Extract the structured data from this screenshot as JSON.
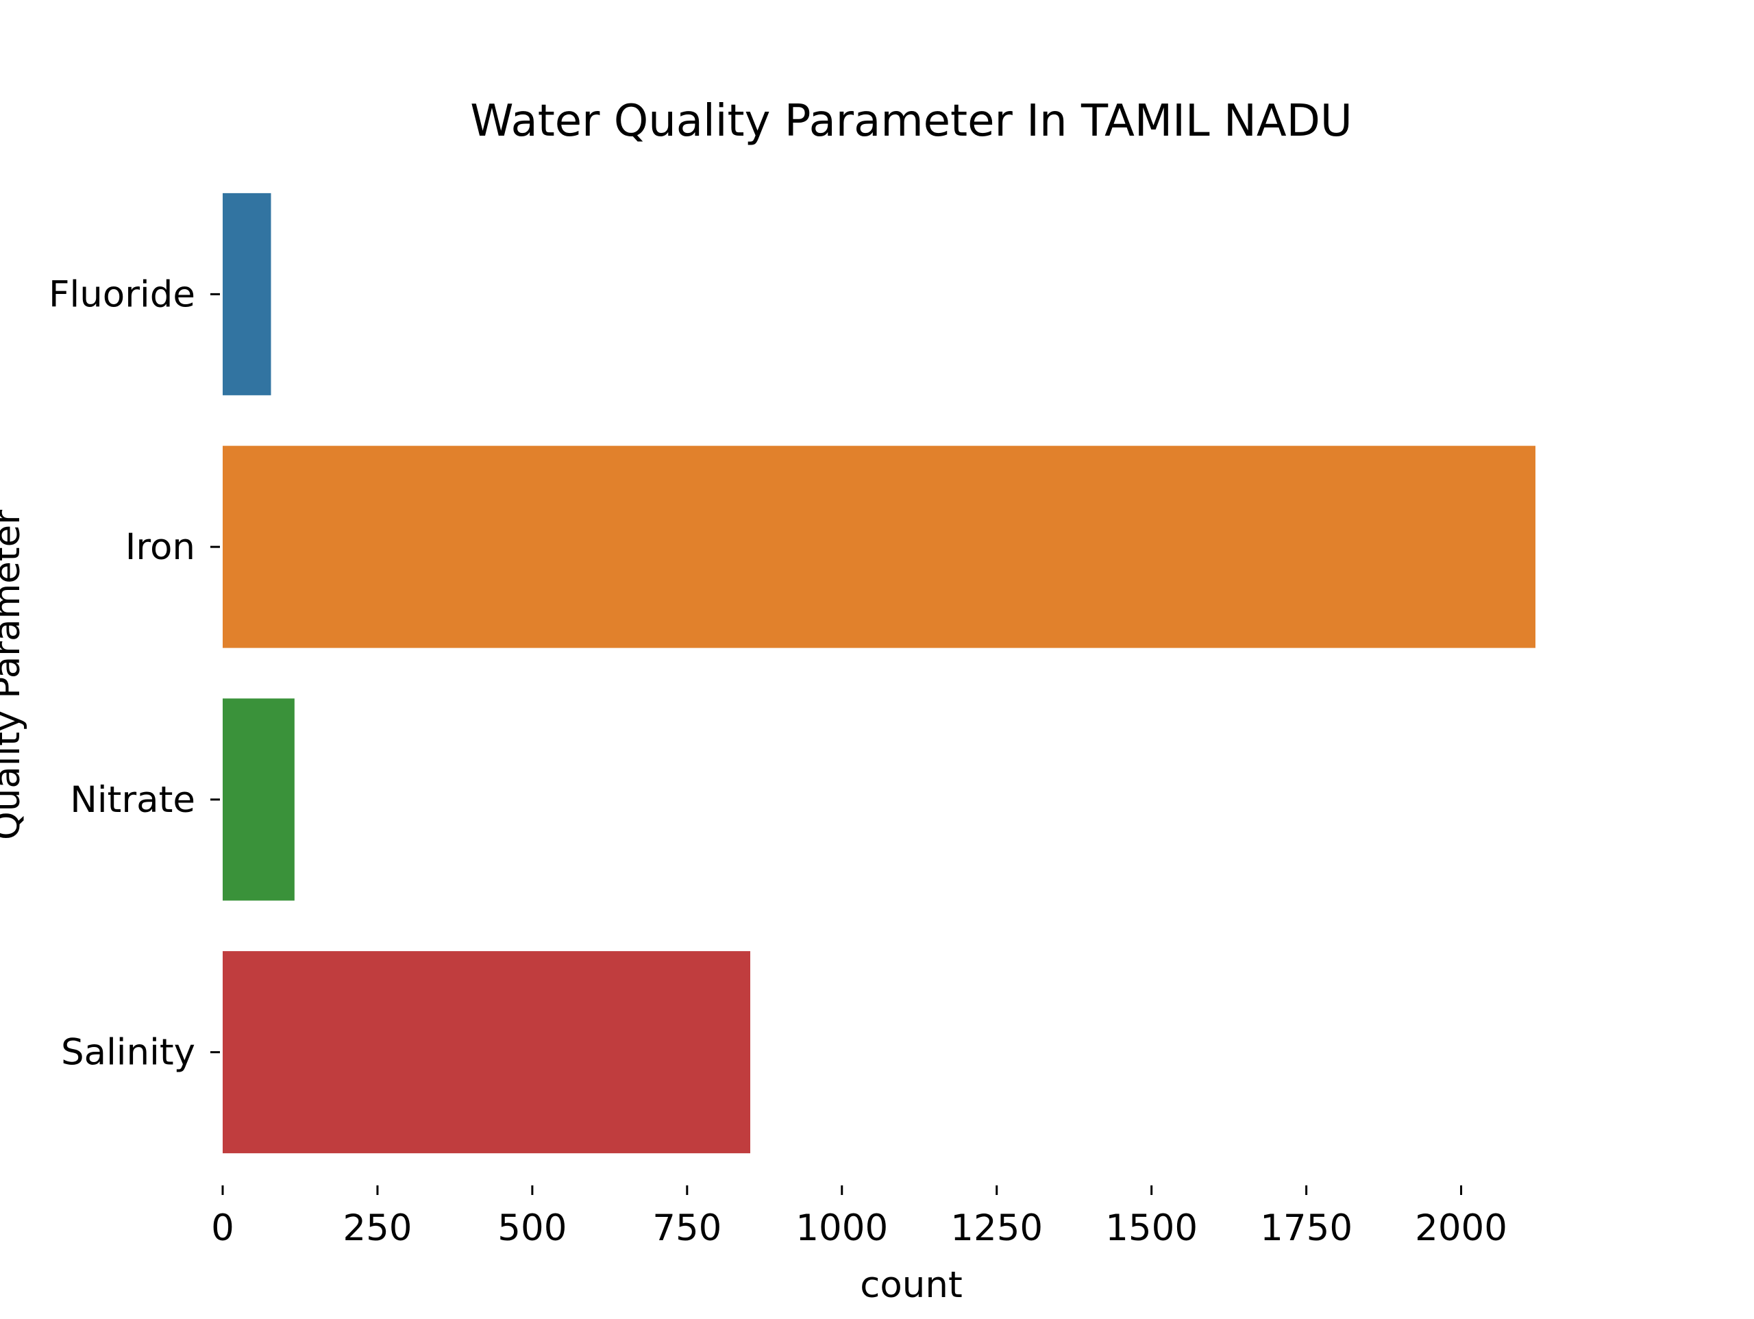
{
  "chart_data": {
    "type": "bar",
    "orientation": "horizontal",
    "title": "Water Quality Parameter In TAMIL NADU",
    "xlabel": "count",
    "ylabel": "Quality Parameter",
    "categories": [
      "Fluoride",
      "Iron",
      "Nitrate",
      "Salinity"
    ],
    "values": [
      78,
      2120,
      116,
      852
    ],
    "xlim": [
      0,
      2120
    ],
    "xticks": [
      0,
      250,
      500,
      750,
      1000,
      1250,
      1500,
      1750,
      2000
    ],
    "grid": false,
    "legend": "none",
    "colors": [
      "#3274a1",
      "#e1812c",
      "#3a923a",
      "#c03d3e"
    ]
  }
}
